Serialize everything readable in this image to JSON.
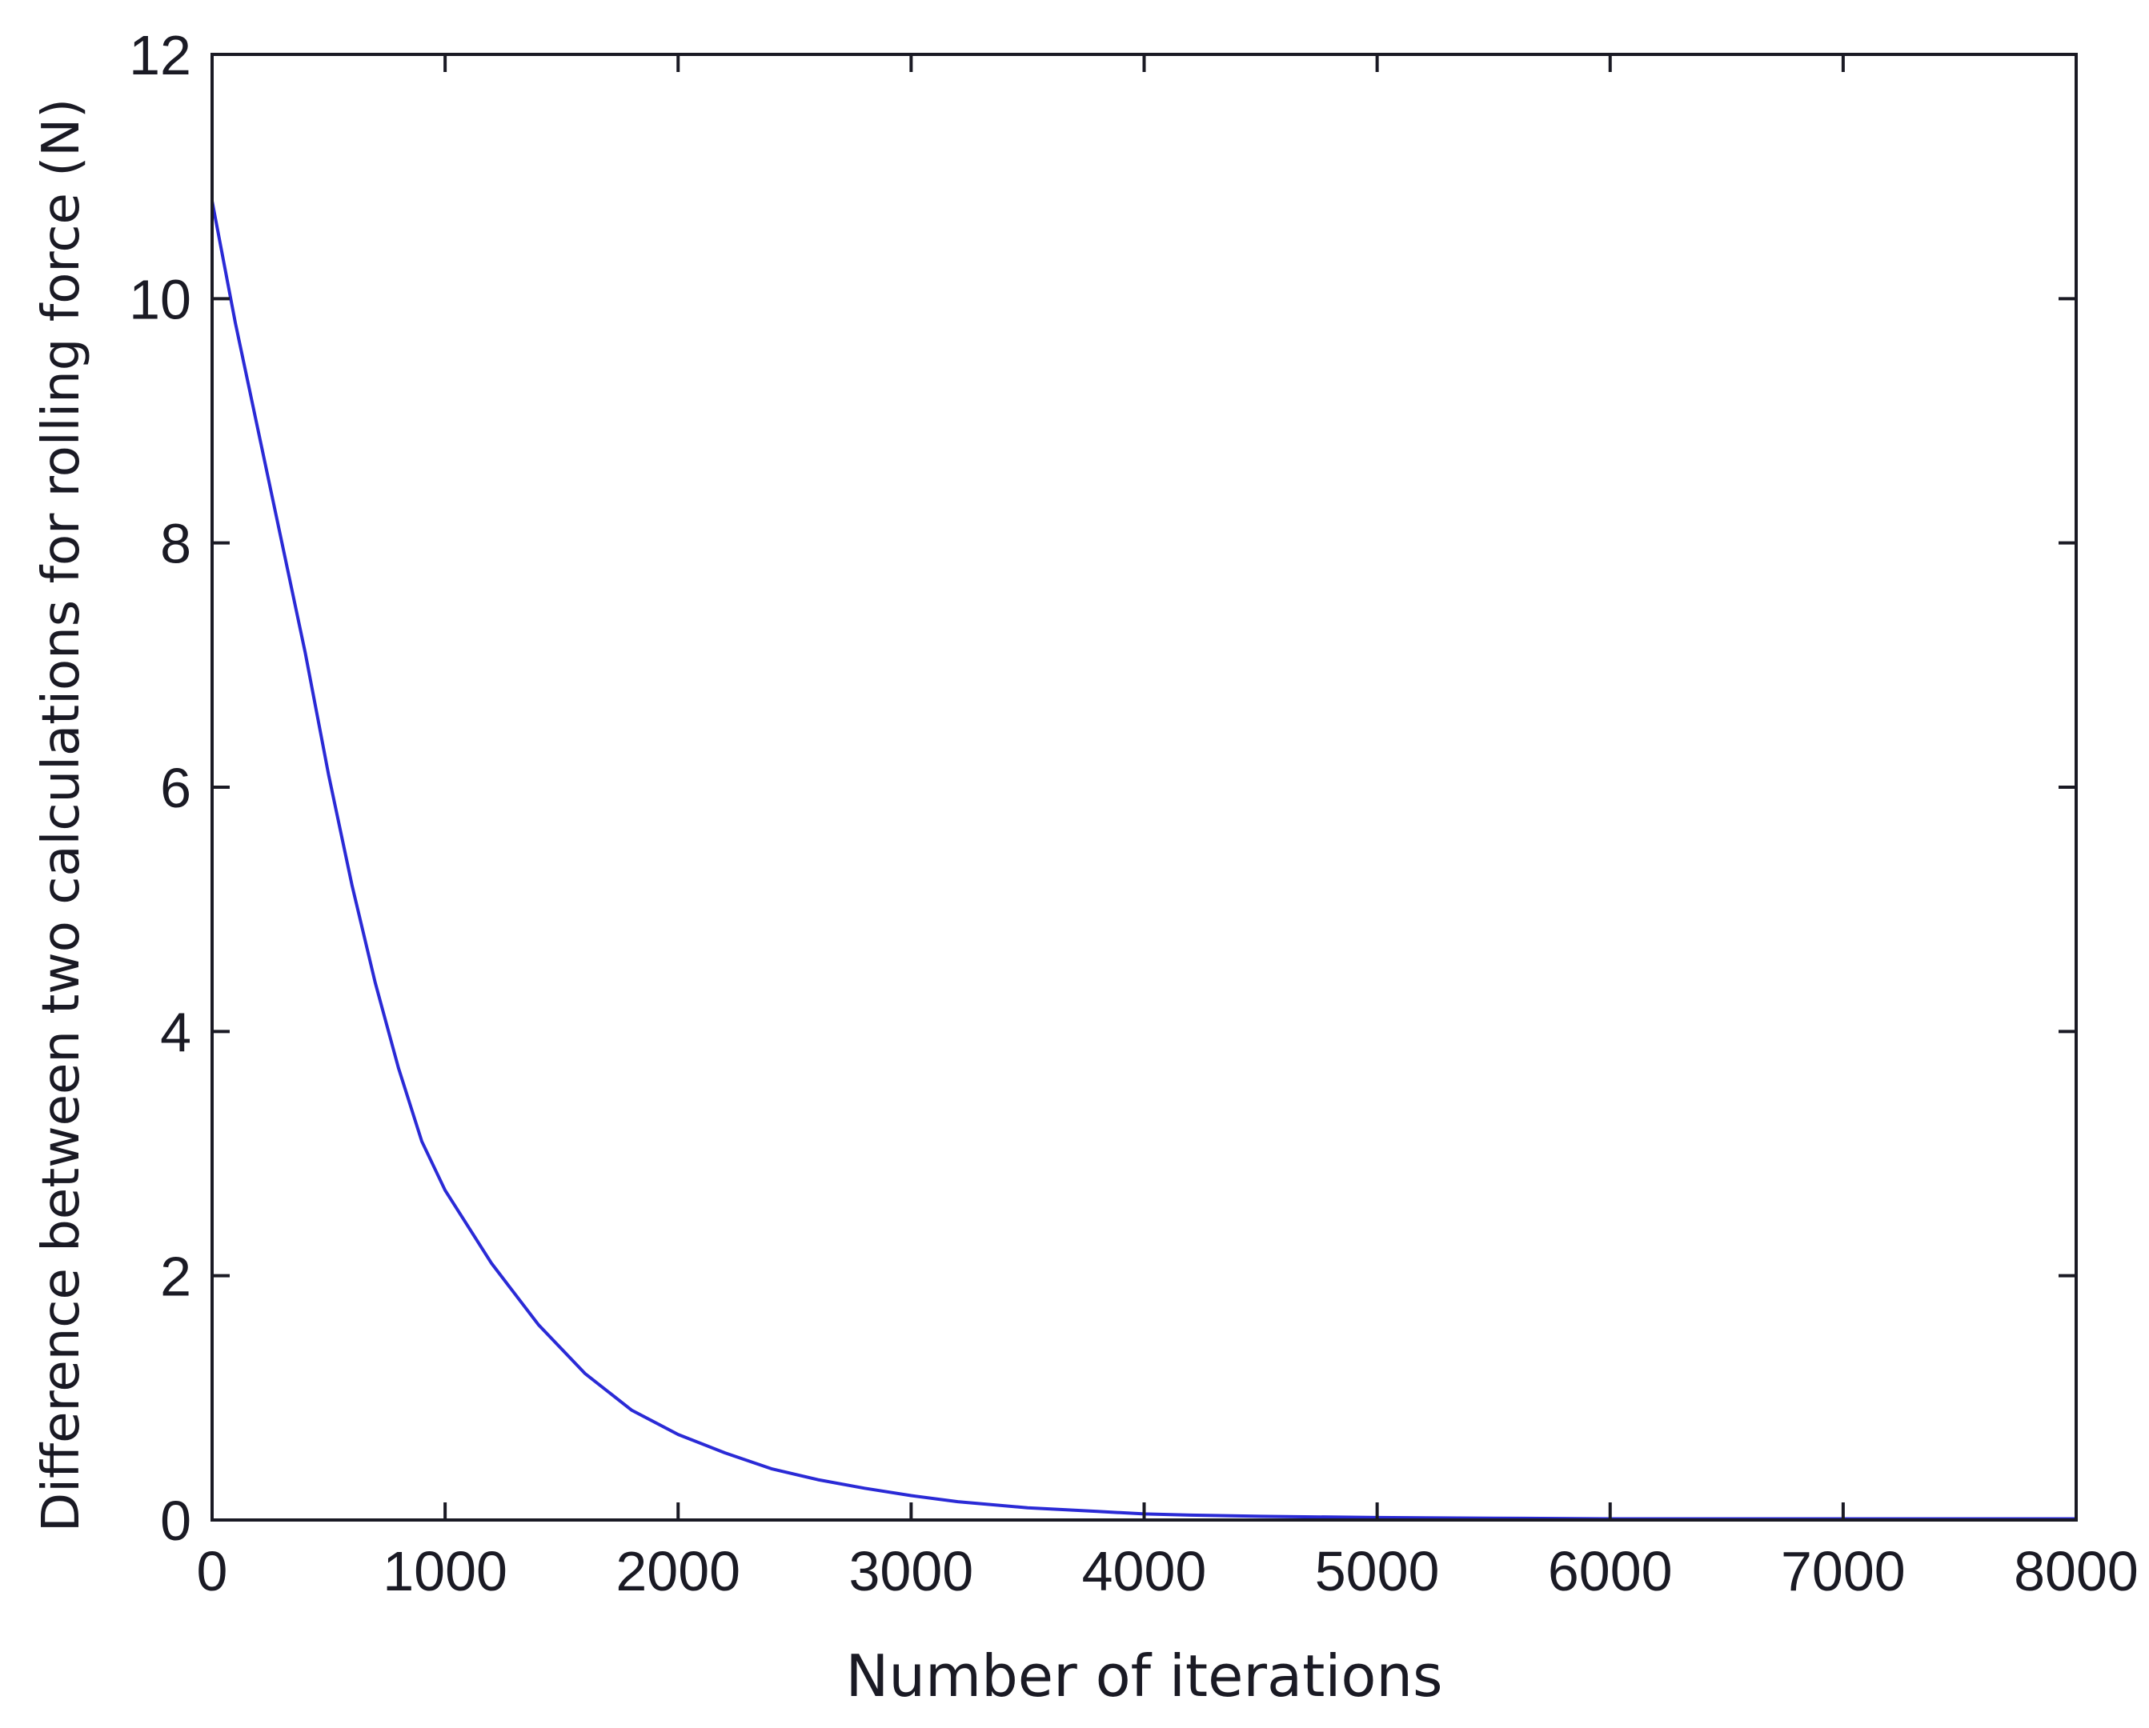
{
  "chart_data": {
    "type": "line",
    "title": "",
    "xlabel": "Number of iterations",
    "ylabel": "Difference between two calculations for rolling force (N)",
    "xlim": [
      0,
      8000
    ],
    "ylim": [
      0,
      12
    ],
    "xticks": [
      0,
      1000,
      2000,
      3000,
      4000,
      5000,
      6000,
      7000,
      8000
    ],
    "xtick_labels": [
      "0",
      "1000",
      "2000",
      "3000",
      "4000",
      "5000",
      "6000",
      "7000",
      "8000"
    ],
    "yticks": [
      0,
      2,
      4,
      6,
      8,
      10,
      12
    ],
    "ytick_labels": [
      "0",
      "2",
      "4",
      "6",
      "8",
      "10",
      "12"
    ],
    "grid": false,
    "series": [
      {
        "color": "#2a2ad6",
        "x": [
          0,
          100,
          200,
          300,
          400,
          500,
          600,
          700,
          800,
          900,
          1000,
          1200,
          1400,
          1600,
          1800,
          2000,
          2200,
          2400,
          2600,
          2800,
          3000,
          3200,
          3500,
          3800,
          4000,
          4200,
          4500,
          5000,
          5500,
          6000,
          7000,
          8000
        ],
        "y": [
          10.8,
          9.8,
          8.9,
          8.0,
          7.1,
          6.1,
          5.2,
          4.4,
          3.7,
          3.1,
          2.7,
          2.1,
          1.6,
          1.2,
          0.9,
          0.7,
          0.55,
          0.42,
          0.33,
          0.26,
          0.2,
          0.15,
          0.1,
          0.07,
          0.05,
          0.04,
          0.03,
          0.02,
          0.015,
          0.01,
          0.01,
          0.01
        ]
      }
    ]
  }
}
